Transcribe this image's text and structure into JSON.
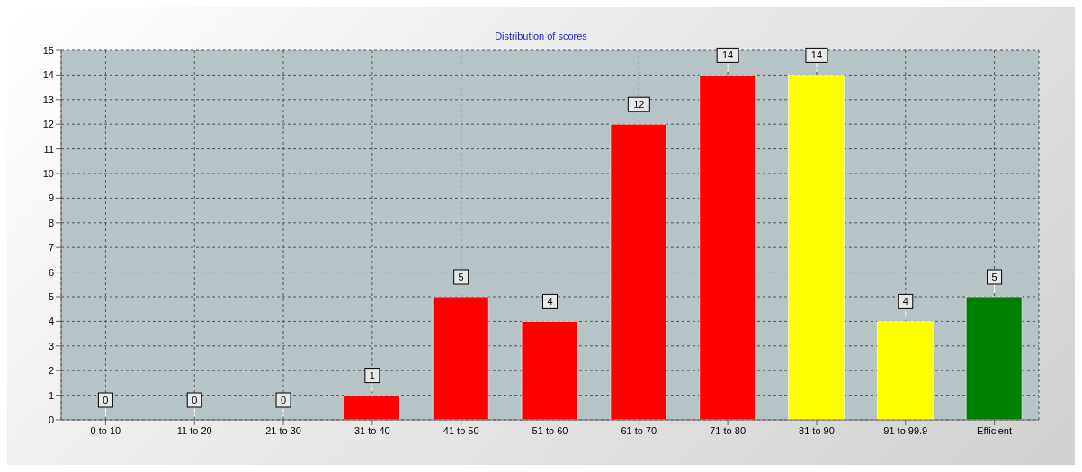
{
  "chart_data": {
    "type": "bar",
    "title": "Distribution of scores",
    "categories": [
      "0 to 10",
      "11 to 20",
      "21 to 30",
      "31 to 40",
      "41 to 50",
      "51 to 60",
      "61 to 70",
      "71 to 80",
      "81 to 90",
      "91 to 99.9",
      "Efficient"
    ],
    "values": [
      0,
      0,
      0,
      1,
      5,
      4,
      12,
      14,
      14,
      4,
      5
    ],
    "colors": [
      "#ff0000",
      "#ff0000",
      "#ff0000",
      "#ff0000",
      "#ff0000",
      "#ff0000",
      "#ff0000",
      "#ff0000",
      "#ffff00",
      "#ffff00",
      "#008000"
    ],
    "ylim": [
      0,
      15
    ],
    "yticks": [
      0,
      1,
      2,
      3,
      4,
      5,
      6,
      7,
      8,
      9,
      10,
      11,
      12,
      13,
      14,
      15
    ],
    "grid": true,
    "data_labels": true
  }
}
